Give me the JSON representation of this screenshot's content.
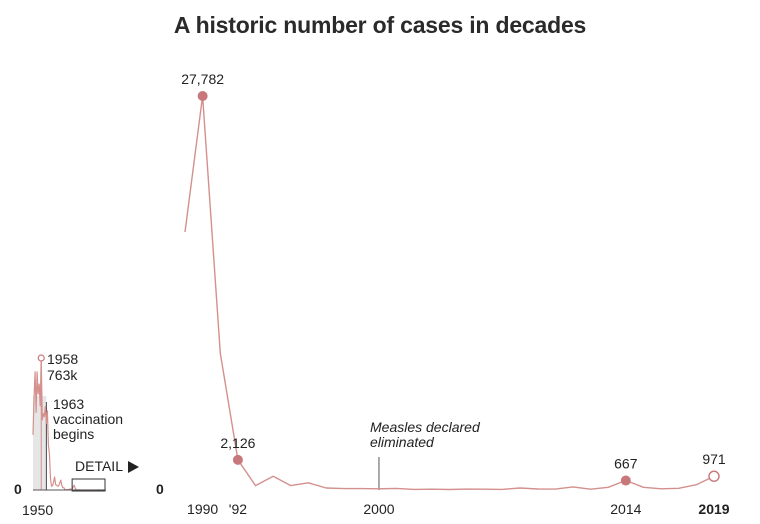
{
  "title": "A historic number of cases in decades",
  "colors": {
    "line": "#d4908d",
    "marker": "#c8787a",
    "text": "#222222",
    "shade": "#e6e6e6"
  },
  "chart_data": [
    {
      "type": "line",
      "x_start_label": "1950",
      "zero_label": "0",
      "annotations": [
        {
          "line1": "1958",
          "line2": "763k"
        },
        {
          "line1": "1963",
          "line2": "vaccination",
          "line3": "begins"
        }
      ],
      "detail_label": "DETAIL",
      "series": [
        {
          "x": [
            1950,
            1951,
            1952,
            1953,
            1954,
            1955,
            1956,
            1957,
            1958,
            1959,
            1960,
            1961,
            1962,
            1963,
            1964,
            1965,
            1966,
            1967,
            1968,
            1969,
            1970,
            1971,
            1972,
            1973,
            1974,
            1975,
            1976,
            1977,
            1978,
            1979,
            1980,
            1981,
            1982,
            1983,
            1984,
            1985,
            1986,
            1987,
            1988,
            1989,
            1990,
            1991,
            1992,
            1993,
            1994,
            1995,
            1996,
            1997,
            1998,
            1999,
            2000,
            2001,
            2002,
            2003,
            2004,
            2005,
            2006,
            2007,
            2008,
            2009,
            2010,
            2011,
            2012,
            2013,
            2014,
            2015,
            2016,
            2017,
            2018,
            2019
          ],
          "values": [
            319000,
            530000,
            683000,
            449000,
            683000,
            555000,
            612000,
            486000,
            763000,
            406000,
            441000,
            424000,
            482000,
            385000,
            458000,
            262000,
            204000,
            63000,
            22000,
            25000,
            47000,
            75000,
            32000,
            27000,
            22000,
            24000,
            41000,
            57000,
            27000,
            13600,
            13500,
            3100,
            1700,
            1500,
            2600,
            2800,
            6300,
            3700,
            3400,
            18193,
            27782,
            9643,
            2126,
            312,
            963,
            309,
            508,
            138,
            100,
            100,
            86,
            116,
            44,
            56,
            37,
            66,
            55,
            43,
            140,
            71,
            63,
            220,
            55,
            187,
            667,
            188,
            86,
            120,
            375,
            971
          ]
        }
      ]
    },
    {
      "type": "line",
      "x_tick_labels": [
        "1990",
        "'92",
        "2000",
        "2014",
        "2019"
      ],
      "zero_label": "0",
      "annotation": {
        "line1": "Measles declared",
        "line2": "eliminated"
      },
      "x": [
        1989,
        1990,
        1991,
        1992,
        1993,
        1994,
        1995,
        1996,
        1997,
        1998,
        1999,
        2000,
        2001,
        2002,
        2003,
        2004,
        2005,
        2006,
        2007,
        2008,
        2009,
        2010,
        2011,
        2012,
        2013,
        2014,
        2015,
        2016,
        2017,
        2018,
        2019
      ],
      "values": [
        18193,
        27782,
        9643,
        2126,
        312,
        963,
        309,
        508,
        138,
        100,
        100,
        86,
        116,
        44,
        56,
        37,
        66,
        55,
        43,
        140,
        71,
        63,
        220,
        55,
        187,
        667,
        188,
        86,
        120,
        375,
        971
      ],
      "point_labels": [
        {
          "x": 1990,
          "label": "27,782"
        },
        {
          "x": 1992,
          "label": "2,126"
        },
        {
          "x": 2014,
          "label": "667"
        },
        {
          "x": 2019,
          "label": "971"
        }
      ],
      "xlim": [
        1989,
        2019
      ],
      "ylim": [
        0,
        27782
      ]
    }
  ]
}
